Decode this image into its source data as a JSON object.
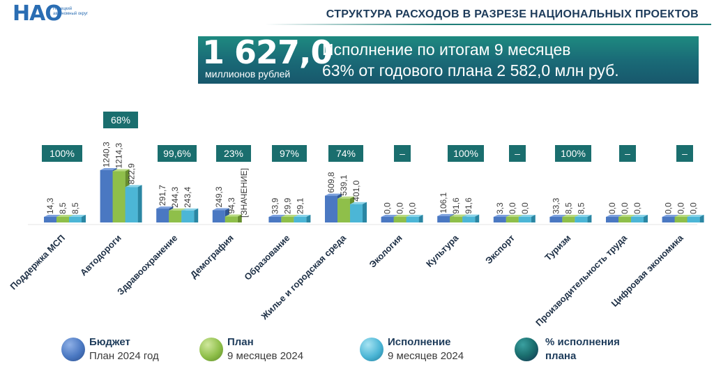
{
  "header": {
    "logo_text": "НАО",
    "logo_subtitle": "Ненецкий автономный округ",
    "title": "СТРУКТУРА РАСХОДОВ В РАЗРЕЗЕ НАЦИОНАЛЬНЫХ ПРОЕКТОВ"
  },
  "banner": {
    "total_value": "1 627,0",
    "total_unit": "миллионов рублей",
    "line1": "Исполнение по итогам 9 месяцев",
    "line2": "63% от годового плана 2 582,0 млн руб."
  },
  "colors": {
    "budget": "#4a78c2",
    "plan": "#8fbf4a",
    "execution": "#4cb6d6",
    "percent_box": "#1a6e6e",
    "title": "#1d3b5a"
  },
  "chart_data": {
    "type": "bar",
    "categories": [
      "Поддержка МСП",
      "Автодороги",
      "Здравоохранение",
      "Демография",
      "Образование",
      "Жилье и городская среда",
      "Экология",
      "Культура",
      "Экспорт",
      "Туризм",
      "Производительность труда",
      "Цифровая экономика"
    ],
    "series": [
      {
        "name": "Бюджет",
        "values": [
          14.3,
          1240.3,
          291.7,
          249.3,
          33.9,
          609.8,
          0.0,
          106.1,
          3.3,
          33.3,
          0.0,
          0.0
        ]
      },
      {
        "name": "План",
        "values": [
          8.5,
          1214.3,
          244.3,
          94.3,
          29.9,
          539.1,
          0.0,
          91.6,
          0.0,
          8.5,
          0.0,
          0.0
        ]
      },
      {
        "name": "Исполнение",
        "values": [
          8.5,
          822.9,
          243.4,
          null,
          29.1,
          401.0,
          0.0,
          91.6,
          0.0,
          8.5,
          0.0,
          0.0
        ]
      }
    ],
    "value_labels": [
      [
        "14,3",
        "8,5",
        "8,5"
      ],
      [
        "1240,3",
        "1214,3",
        "822,9"
      ],
      [
        "291,7",
        "244,3",
        "243,4"
      ],
      [
        "249,3",
        "94,3",
        "[ЗНАЧЕНИЕ]"
      ],
      [
        "33,9",
        "29,9",
        "29,1"
      ],
      [
        "609,8",
        "539,1",
        "401,0"
      ],
      [
        "0,0",
        "0,0",
        "0,0"
      ],
      [
        "106,1",
        "91,6",
        "91,6"
      ],
      [
        "3,3",
        "0,0",
        "0,0"
      ],
      [
        "33,3",
        "8,5",
        "8,5"
      ],
      [
        "0,0",
        "0,0",
        "0,0"
      ],
      [
        "0,0",
        "0,0",
        "0,0"
      ]
    ],
    "percent_labels": [
      "100%",
      "68%",
      "99,6%",
      "23%",
      "97%",
      "74%",
      "–",
      "100%",
      "–",
      "100%",
      "–",
      "–"
    ],
    "ylim": [
      0,
      1300
    ]
  },
  "legend": [
    {
      "title": "Бюджет",
      "subtitle": "План 2024 год"
    },
    {
      "title": "План",
      "subtitle": "9 месяцев 2024"
    },
    {
      "title": "Исполнение",
      "subtitle": "9 месяцев 2024"
    },
    {
      "title": "% исполнения",
      "subtitle": "плана"
    }
  ]
}
